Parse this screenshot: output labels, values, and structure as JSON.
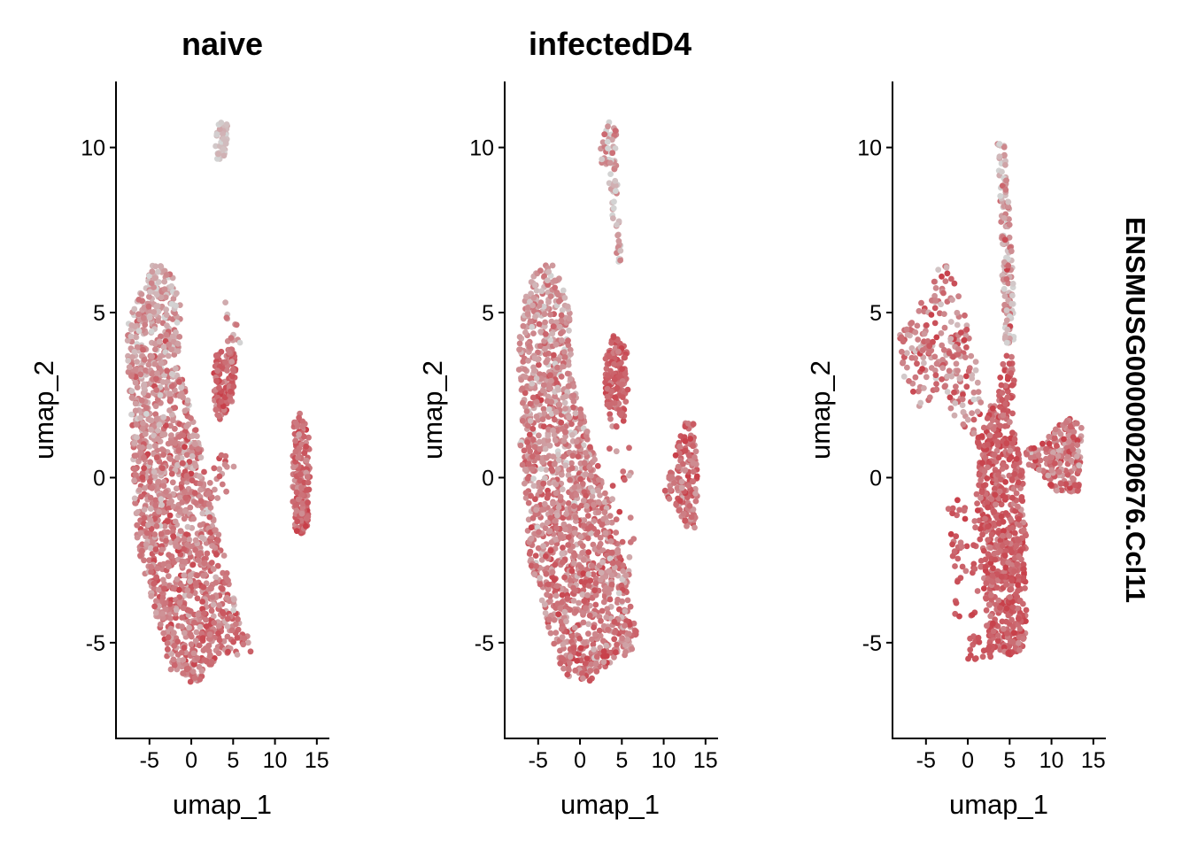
{
  "figure": {
    "feature_label": "ENSMUSG00000020676.Ccl11",
    "colors": {
      "low": "#d3d3d3",
      "high": "#c8404a"
    }
  },
  "chart_data": [
    {
      "type": "scatter",
      "title": "naive",
      "xlabel": "umap_1",
      "ylabel": "umap_2",
      "xlim": [
        -9,
        16.5
      ],
      "ylim": [
        -7.9,
        12
      ],
      "xticks": [
        -5,
        0,
        5,
        10,
        15
      ],
      "yticks": [
        -5,
        0,
        5,
        10
      ],
      "xtick_labels": [
        "-5",
        "0",
        "5",
        "10",
        "15"
      ],
      "ytick_labels": [
        "-5",
        "0",
        "5",
        "10"
      ],
      "color_scale": "expression: low=#d3d3d3, high=#c8404a",
      "clusters": [
        {
          "name": "main",
          "polygon": [
            [
              -4.5,
              6.5
            ],
            [
              -2.5,
              6.3
            ],
            [
              -1.2,
              5.2
            ],
            [
              -1.5,
              3.5
            ],
            [
              0.2,
              1.8
            ],
            [
              2,
              0
            ],
            [
              3.8,
              -2.2
            ],
            [
              5,
              -3.5
            ],
            [
              5.8,
              -4.5
            ],
            [
              6.8,
              -4.8
            ],
            [
              7.2,
              -5.4
            ],
            [
              6.3,
              -5.4
            ],
            [
              3.5,
              -5.3
            ],
            [
              0.5,
              -6.3
            ],
            [
              -2.5,
              -5.8
            ],
            [
              -6.5,
              -2
            ],
            [
              -7.3,
              2
            ],
            [
              -7.8,
              4.5
            ],
            [
              -6,
              5.8
            ]
          ],
          "n": 1500,
          "exprMean": 0.62,
          "exprSd": 0.2,
          "top": 0.32
        },
        {
          "name": "top",
          "polygon": [
            [
              2.8,
              10
            ],
            [
              3.3,
              10.8
            ],
            [
              4.3,
              10.8
            ],
            [
              4.5,
              10.3
            ],
            [
              4.1,
              9.8
            ],
            [
              3.1,
              9.5
            ]
          ],
          "n": 45,
          "exprMean": 0.12,
          "exprSd": 0.1
        },
        {
          "name": "mid-right",
          "polygon": [
            [
              2.7,
              3.5
            ],
            [
              3.2,
              3.9
            ],
            [
              5.2,
              3.9
            ],
            [
              5.4,
              2.8
            ],
            [
              4.6,
              2
            ],
            [
              3.4,
              1.7
            ],
            [
              2.6,
              2.3
            ]
          ],
          "n": 130,
          "exprMean": 0.72,
          "exprSd": 0.15
        },
        {
          "name": "far-right",
          "polygon": [
            [
              12.2,
              1.8
            ],
            [
              13.2,
              2
            ],
            [
              14.1,
              1.2
            ],
            [
              14.2,
              -0.3
            ],
            [
              13.9,
              -1.7
            ],
            [
              12.5,
              -1.7
            ],
            [
              12,
              -0.5
            ],
            [
              12.1,
              1
            ]
          ],
          "n": 170,
          "exprMean": 0.7,
          "exprSd": 0.15
        },
        {
          "name": "scatter",
          "polygon": [
            [
              2,
              1
            ],
            [
              5.8,
              1
            ],
            [
              5.8,
              -1
            ],
            [
              2,
              -1
            ]
          ],
          "n": 18,
          "exprMean": 0.6,
          "exprSd": 0.2
        },
        {
          "name": "right-spots",
          "polygon": [
            [
              4,
              5.5
            ],
            [
              6,
              5.5
            ],
            [
              6,
              4
            ],
            [
              4,
              4
            ]
          ],
          "n": 12,
          "exprMean": 0.4,
          "exprSd": 0.3
        }
      ]
    },
    {
      "type": "scatter",
      "title": "infectedD4",
      "xlabel": "umap_1",
      "ylabel": "umap_2",
      "xlim": [
        -9,
        16.5
      ],
      "ylim": [
        -7.9,
        12
      ],
      "xticks": [
        -5,
        0,
        5,
        10,
        15
      ],
      "yticks": [
        -5,
        0,
        5,
        10
      ],
      "xtick_labels": [
        "-5",
        "0",
        "5",
        "10",
        "15"
      ],
      "ytick_labels": [
        "-5",
        "0",
        "5",
        "10"
      ],
      "color_scale": "expression: low=#d3d3d3, high=#c8404a",
      "clusters": [
        {
          "name": "main",
          "polygon": [
            [
              -5,
              6.4
            ],
            [
              -3.5,
              6.6
            ],
            [
              -2,
              6
            ],
            [
              -1.2,
              5
            ],
            [
              -1,
              3.2
            ],
            [
              1.2,
              1.2
            ],
            [
              3.5,
              -0.8
            ],
            [
              5.5,
              -2.8
            ],
            [
              6.3,
              -4.2
            ],
            [
              7,
              -4.8
            ],
            [
              6.6,
              -5.4
            ],
            [
              4.5,
              -5.4
            ],
            [
              1,
              -6.2
            ],
            [
              -2.2,
              -6
            ],
            [
              -6,
              -2.5
            ],
            [
              -7.2,
              1
            ],
            [
              -7.5,
              4
            ],
            [
              -6.5,
              5.6
            ]
          ],
          "n": 1500,
          "exprMean": 0.6,
          "exprSd": 0.2,
          "top": 0.35
        },
        {
          "name": "top-stream",
          "polygon": [
            [
              2.3,
              10
            ],
            [
              3.5,
              10.8
            ],
            [
              4.4,
              10.6
            ],
            [
              4.6,
              8
            ],
            [
              5,
              6.5
            ],
            [
              4.5,
              6.4
            ],
            [
              3.8,
              8
            ],
            [
              3.3,
              9.4
            ],
            [
              2.5,
              9.2
            ]
          ],
          "n": 80,
          "exprMean": 0.3,
          "exprSd": 0.25
        },
        {
          "name": "mid-right",
          "polygon": [
            [
              3,
              3.8
            ],
            [
              4,
              4.3
            ],
            [
              5.8,
              3.9
            ],
            [
              5.7,
              2.4
            ],
            [
              5.2,
              1.6
            ],
            [
              3.9,
              1.5
            ],
            [
              3,
              2.3
            ]
          ],
          "n": 140,
          "exprMean": 0.75,
          "exprSd": 0.12
        },
        {
          "name": "far-right",
          "polygon": [
            [
              10,
              -0.5
            ],
            [
              11.5,
              0.8
            ],
            [
              12.5,
              1.8
            ],
            [
              13.6,
              1.7
            ],
            [
              14,
              0.5
            ],
            [
              14,
              -1.5
            ],
            [
              12.6,
              -1.6
            ],
            [
              11.2,
              -0.8
            ]
          ],
          "n": 150,
          "exprMean": 0.68,
          "exprSd": 0.18
        },
        {
          "name": "scatter",
          "polygon": [
            [
              3.5,
              1
            ],
            [
              6.5,
              1
            ],
            [
              6.5,
              -3
            ],
            [
              3.5,
              -3
            ]
          ],
          "n": 25,
          "exprMean": 0.6,
          "exprSd": 0.2
        }
      ]
    },
    {
      "type": "scatter",
      "title": "",
      "xlabel": "umap_1",
      "ylabel": "umap_2",
      "xlim": [
        -9,
        16.5
      ],
      "ylim": [
        -7.9,
        12
      ],
      "xticks": [
        -5,
        0,
        5,
        10,
        15
      ],
      "yticks": [
        -5,
        0,
        5,
        10
      ],
      "xtick_labels": [
        "-5",
        "0",
        "5",
        "10",
        "15"
      ],
      "ytick_labels": [
        "-5",
        "0",
        "5",
        "10"
      ],
      "color_scale": "expression: low=#d3d3d3, high=#c8404a",
      "clusters": [
        {
          "name": "main-column",
          "polygon": [
            [
              1.2,
              1.3
            ],
            [
              3.2,
              2.5
            ],
            [
              4.8,
              4
            ],
            [
              5.6,
              3.5
            ],
            [
              5.4,
              1.5
            ],
            [
              6.5,
              0.5
            ],
            [
              7,
              -2
            ],
            [
              7,
              -5.2
            ],
            [
              6.2,
              -5.3
            ],
            [
              4.5,
              -5.4
            ],
            [
              2.5,
              -5.1
            ],
            [
              1.6,
              -3
            ],
            [
              1,
              -1
            ]
          ],
          "n": 700,
          "exprMean": 0.78,
          "exprSd": 0.14
        },
        {
          "name": "upper-stream",
          "polygon": [
            [
              3.5,
              10.2
            ],
            [
              4.6,
              10
            ],
            [
              5,
              8
            ],
            [
              5.4,
              6
            ],
            [
              5.6,
              4.2
            ],
            [
              4.4,
              4
            ],
            [
              4.1,
              6
            ],
            [
              3.9,
              8.2
            ]
          ],
          "n": 140,
          "exprMean": 0.3,
          "exprSd": 0.25
        },
        {
          "name": "left-spray",
          "polygon": [
            [
              -8.2,
              4.3
            ],
            [
              -4.5,
              5.8
            ],
            [
              -2.8,
              6.8
            ],
            [
              -0.8,
              5.3
            ],
            [
              0.5,
              4.2
            ],
            [
              1.8,
              2.3
            ],
            [
              0.8,
              1.2
            ],
            [
              -1.5,
              1.8
            ],
            [
              -3.5,
              2.6
            ],
            [
              -5.5,
              2
            ],
            [
              -7.5,
              2.8
            ]
          ],
          "n": 230,
          "exprMean": 0.55,
          "exprSd": 0.25
        },
        {
          "name": "right-blob",
          "polygon": [
            [
              6.5,
              0.8
            ],
            [
              8.5,
              1
            ],
            [
              10,
              1.4
            ],
            [
              12,
              1.8
            ],
            [
              13.6,
              1.6
            ],
            [
              13.3,
              -0.5
            ],
            [
              12,
              -0.4
            ],
            [
              10.5,
              -0.4
            ],
            [
              9,
              0
            ],
            [
              7,
              0.4
            ]
          ],
          "n": 220,
          "exprMean": 0.62,
          "exprSd": 0.2
        },
        {
          "name": "lower-scatter",
          "polygon": [
            [
              -2.5,
              -0.5
            ],
            [
              1.2,
              -0.5
            ],
            [
              1.5,
              -4.3
            ],
            [
              -2,
              -4.2
            ]
          ],
          "n": 45,
          "exprMean": 0.8,
          "exprSd": 0.12
        },
        {
          "name": "bottom-dots",
          "polygon": [
            [
              0,
              -4.8
            ],
            [
              3,
              -4.8
            ],
            [
              3,
              -5.5
            ],
            [
              0,
              -5.5
            ]
          ],
          "n": 18,
          "exprMean": 0.85,
          "exprSd": 0.08
        }
      ]
    }
  ]
}
